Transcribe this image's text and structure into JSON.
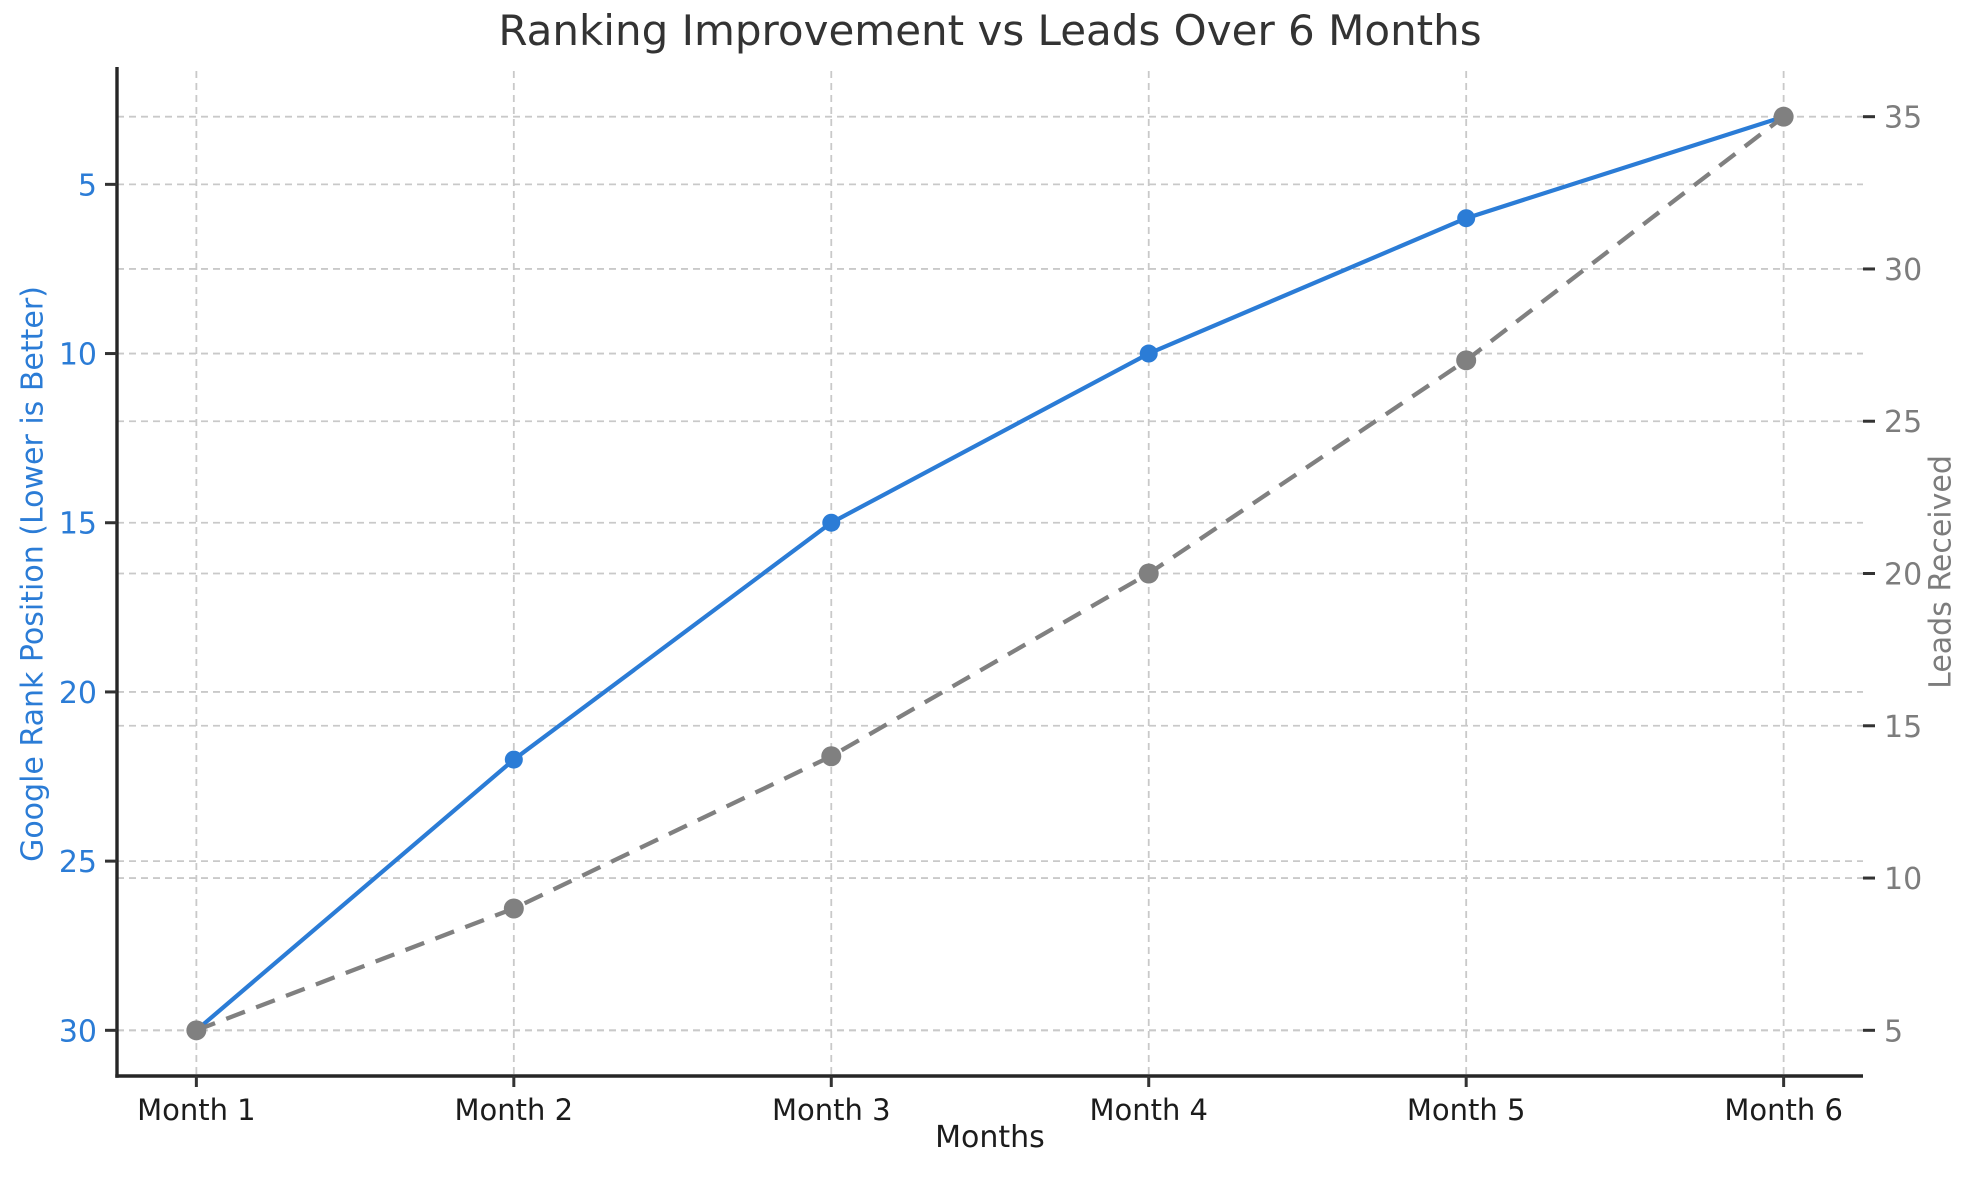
{
  "title": "Ranking Improvement vs Leads Over 6 Months",
  "chart_data": {
    "type": "line",
    "categories": [
      "Month 1",
      "Month 2",
      "Month 3",
      "Month 4",
      "Month 5",
      "Month 6"
    ],
    "x": [
      1,
      2,
      3,
      4,
      5,
      6
    ],
    "xlabel": "Months",
    "series": [
      {
        "name": "Google Rank Position",
        "axis": "left",
        "values": [
          30,
          22,
          15,
          10,
          6,
          3
        ],
        "color": "#2b7cd6",
        "line_style": "solid",
        "marker": "circle"
      },
      {
        "name": "Leads Received",
        "axis": "right",
        "values": [
          5,
          9,
          14,
          20,
          27,
          35
        ],
        "color": "#808080",
        "line_style": "dashed",
        "marker": "circle"
      }
    ],
    "axes": {
      "x": {
        "min": 0.75,
        "max": 6.25
      },
      "left": {
        "label": "Google Rank Position (Lower is Better)",
        "min": 1.65,
        "max": 31.35,
        "inverted": true,
        "ticks": [
          5,
          10,
          15,
          20,
          25,
          30
        ],
        "color": "#2b7cd6"
      },
      "right": {
        "label": "Leads Received",
        "min": 3.5,
        "max": 36.5,
        "inverted": false,
        "ticks": [
          5,
          10,
          15,
          20,
          25,
          30,
          35
        ],
        "color": "#7d7d7d"
      }
    },
    "grid": true,
    "legend": "none"
  },
  "colors": {
    "title_text": "#333333",
    "x_text": "#1c1c1c",
    "grid": "#c9c9c9",
    "spine": "#262626",
    "tick_mark": "#333333",
    "background": "#ffffff"
  }
}
